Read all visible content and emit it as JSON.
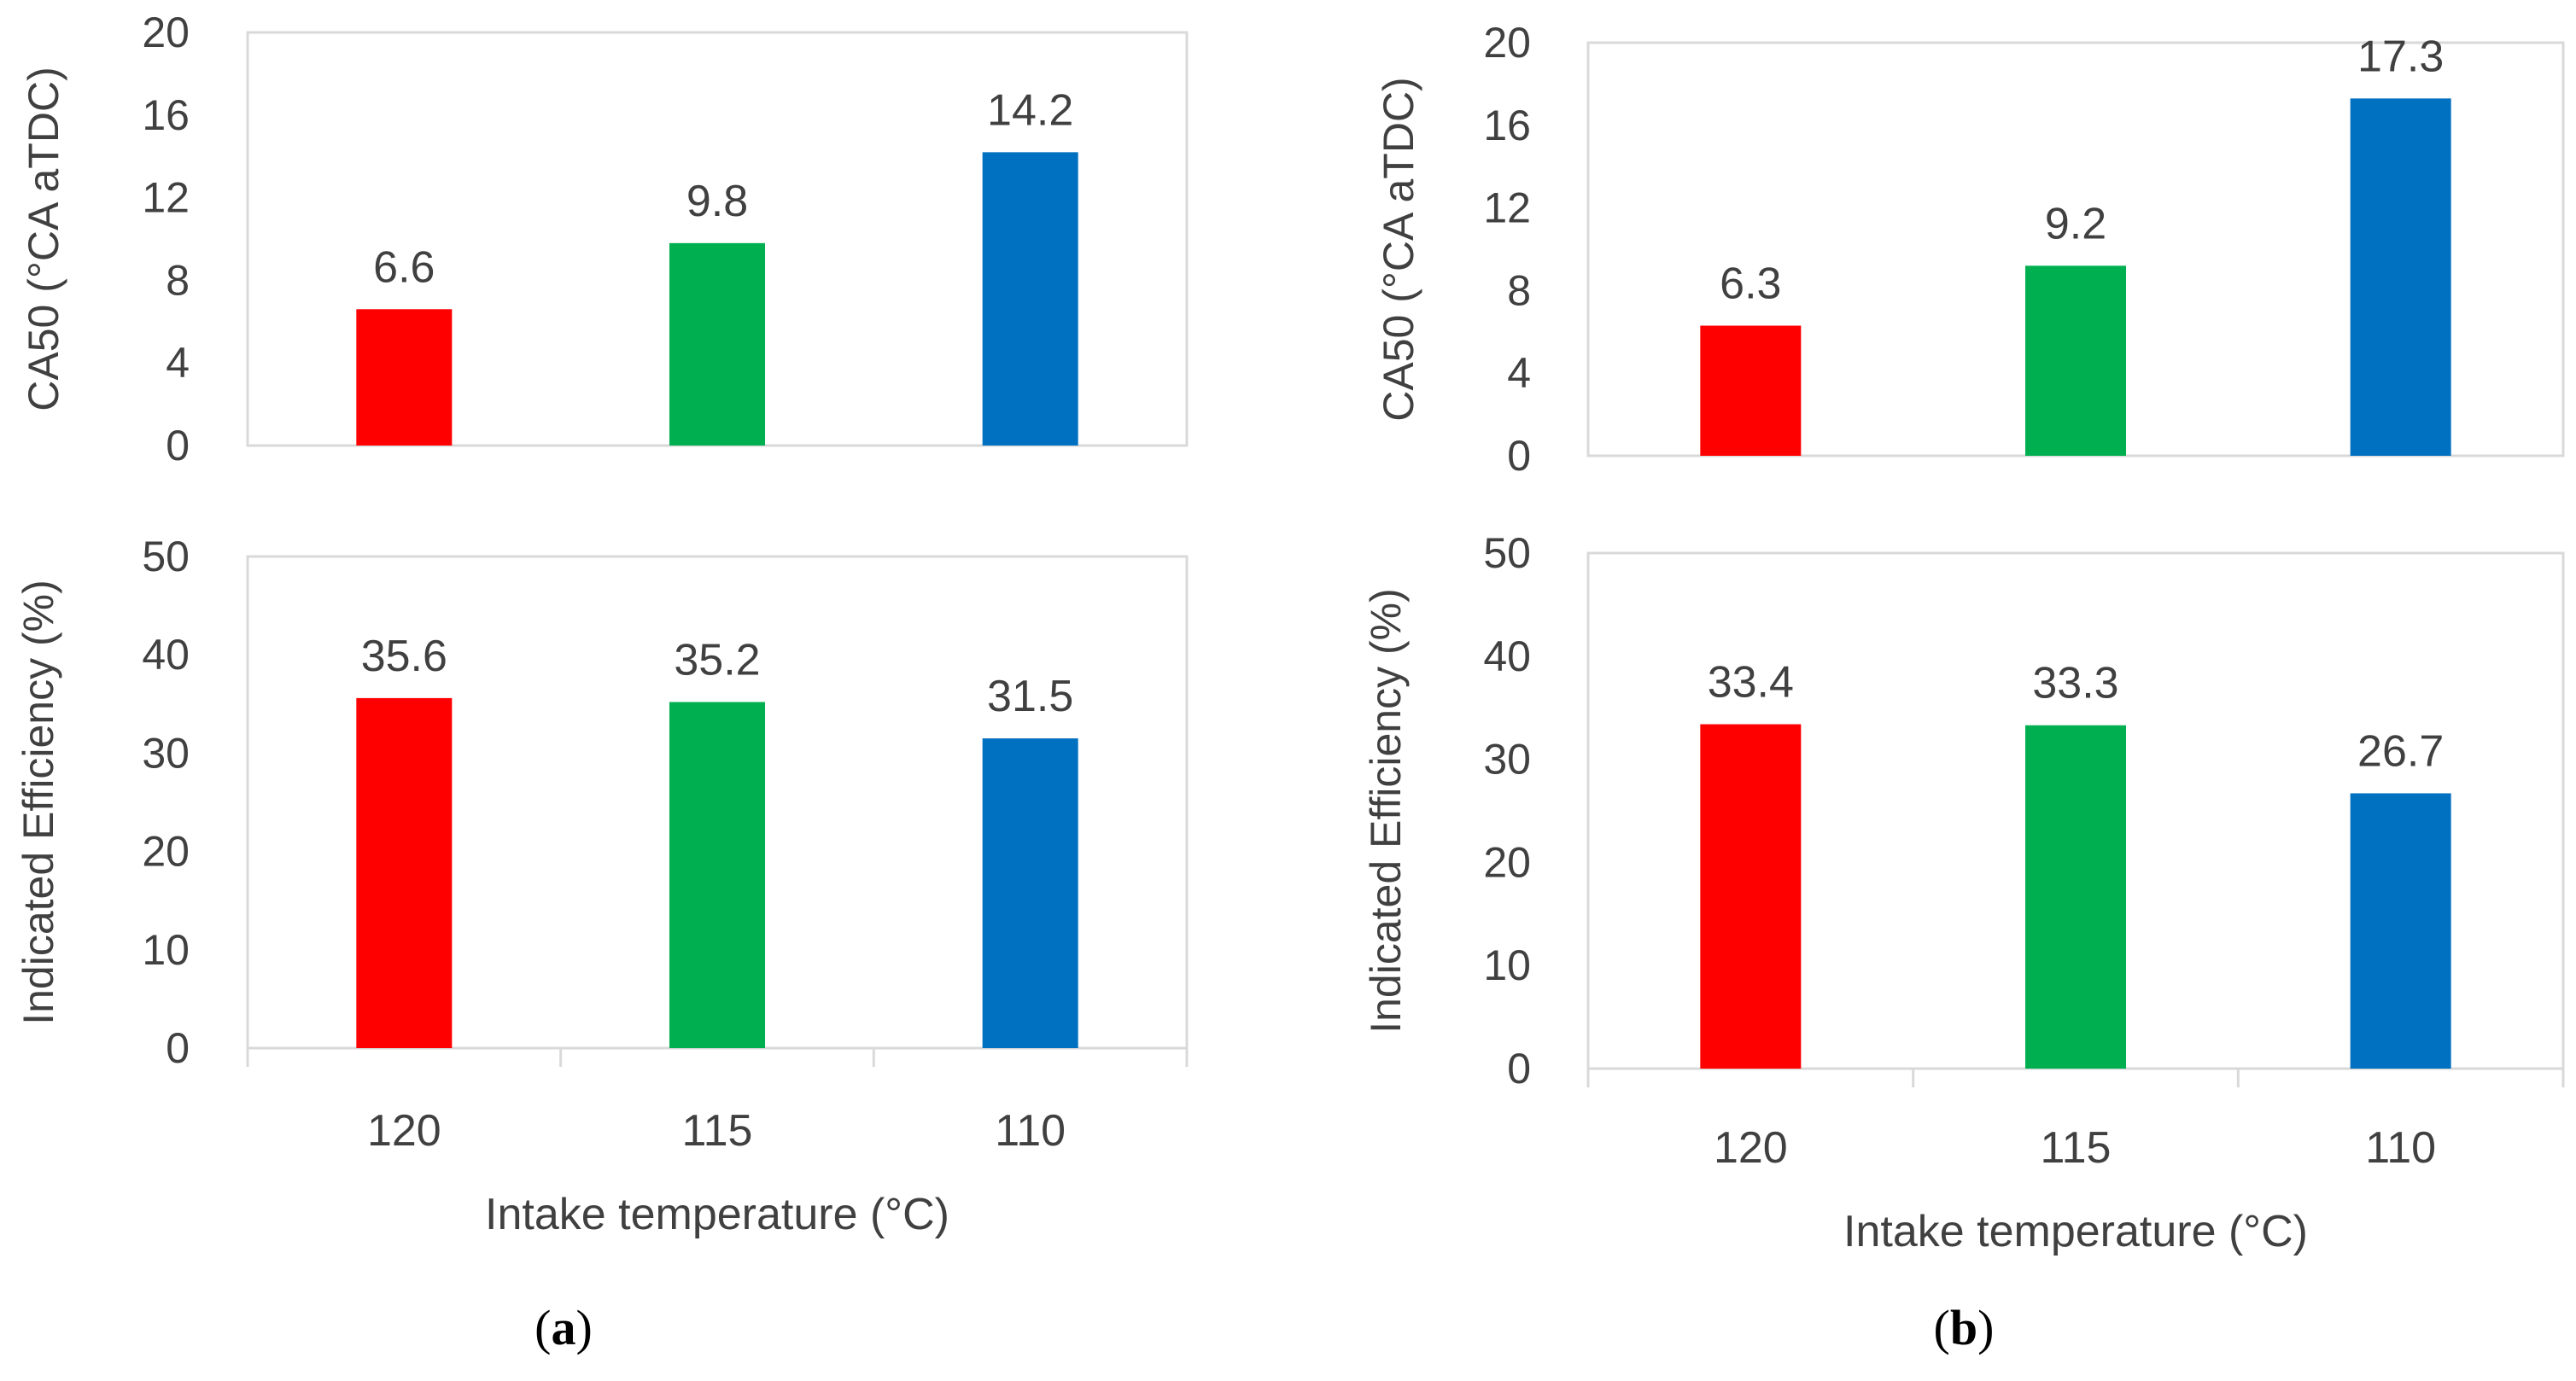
{
  "colors": {
    "bar_120": "#ff0000",
    "bar_115": "#00b050",
    "bar_110": "#0070c0",
    "frame": "#d9d9d9",
    "text": "#404040"
  },
  "chart_data": [
    {
      "type": "bar",
      "panel": "a",
      "categories": [
        "120",
        "115",
        "110"
      ],
      "values": [
        6.6,
        9.8,
        14.2
      ],
      "data_labels": [
        "6.6",
        "9.8",
        "14.2"
      ],
      "ylabel": "CA50 (°CA aTDC)",
      "ylim": [
        0,
        20
      ],
      "yticks": [
        0,
        4,
        8,
        12,
        16,
        20
      ],
      "xlabel": "",
      "grid": false,
      "legend": "none"
    },
    {
      "type": "bar",
      "panel": "a",
      "categories": [
        "120",
        "115",
        "110"
      ],
      "values": [
        35.6,
        35.2,
        31.5
      ],
      "data_labels": [
        "35.6",
        "35.2",
        "31.5"
      ],
      "ylabel": "Indicated Efficiency (%)",
      "ylim": [
        0,
        50
      ],
      "yticks": [
        0,
        10,
        20,
        30,
        40,
        50
      ],
      "xlabel": "Intake temperature (°C)",
      "grid": false,
      "legend": "none"
    },
    {
      "type": "bar",
      "panel": "b",
      "categories": [
        "120",
        "115",
        "110"
      ],
      "values": [
        6.3,
        9.2,
        17.3
      ],
      "data_labels": [
        "6.3",
        "9.2",
        "17.3"
      ],
      "ylabel": "CA50 (°CA aTDC)",
      "ylim": [
        0,
        20
      ],
      "yticks": [
        0,
        4,
        8,
        12,
        16,
        20
      ],
      "xlabel": "",
      "grid": false,
      "legend": "none"
    },
    {
      "type": "bar",
      "panel": "b",
      "categories": [
        "120",
        "115",
        "110"
      ],
      "values": [
        33.4,
        33.3,
        26.7
      ],
      "data_labels": [
        "33.4",
        "33.3",
        "26.7"
      ],
      "ylabel": "Indicated Efficiency (%)",
      "ylim": [
        0,
        50
      ],
      "yticks": [
        0,
        10,
        20,
        30,
        40,
        50
      ],
      "xlabel": "Intake temperature (°C)",
      "grid": false,
      "legend": "none"
    }
  ],
  "captions": [
    {
      "open": "(",
      "letter": "a",
      "close": ")"
    },
    {
      "open": "(",
      "letter": "b",
      "close": ")"
    }
  ]
}
